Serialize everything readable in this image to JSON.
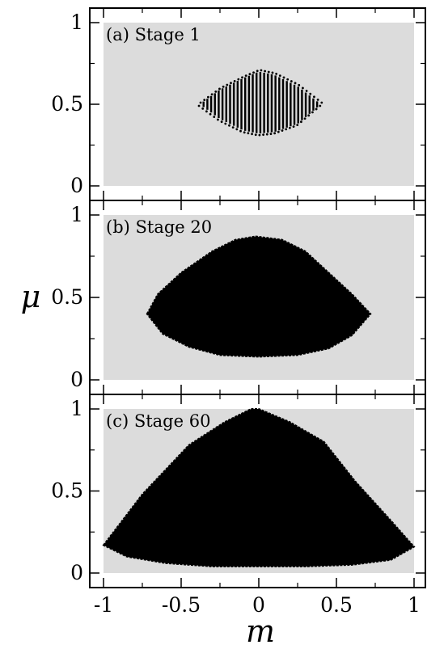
{
  "chart_data": [
    {
      "type": "scatter",
      "panel_label": "(a) Stage 1",
      "xlim": [
        -1,
        1
      ],
      "ylim": [
        0,
        1
      ],
      "xticks": [
        -1,
        -0.5,
        0,
        0.5,
        1
      ],
      "yticks": [
        0,
        0.5,
        1
      ],
      "ytick_labels": [
        "0",
        "0.5",
        "1"
      ],
      "show_xtick_labels": false,
      "region": {
        "shape": "scattered-vertical-strips",
        "x_range": [
          -0.38,
          0.4
        ],
        "y_center": 0.5,
        "y_half_height_at_center": 0.2,
        "upper_boundary": [
          [
            -0.38,
            0.5
          ],
          [
            -0.25,
            0.59
          ],
          [
            -0.1,
            0.66
          ],
          [
            0.0,
            0.7
          ],
          [
            0.1,
            0.68
          ],
          [
            0.25,
            0.61
          ],
          [
            0.4,
            0.5
          ]
        ],
        "lower_boundary": [
          [
            -0.38,
            0.5
          ],
          [
            -0.25,
            0.41
          ],
          [
            -0.1,
            0.34
          ],
          [
            0.0,
            0.32
          ],
          [
            0.1,
            0.33
          ],
          [
            0.25,
            0.38
          ],
          [
            0.4,
            0.5
          ]
        ]
      }
    },
    {
      "type": "area",
      "panel_label": "(b) Stage 20",
      "xlim": [
        -1,
        1
      ],
      "ylim": [
        0,
        1
      ],
      "xticks": [
        -1,
        -0.5,
        0,
        0.5,
        1
      ],
      "yticks": [
        0,
        0.5,
        1
      ],
      "ytick_labels": [
        "0",
        "0.5",
        "1"
      ],
      "show_xtick_labels": false,
      "region": {
        "shape": "filled-region",
        "upper_boundary": [
          [
            -0.72,
            0.4
          ],
          [
            -0.65,
            0.52
          ],
          [
            -0.5,
            0.65
          ],
          [
            -0.3,
            0.78
          ],
          [
            -0.15,
            0.85
          ],
          [
            -0.02,
            0.87
          ],
          [
            0.15,
            0.85
          ],
          [
            0.3,
            0.78
          ],
          [
            0.45,
            0.65
          ],
          [
            0.6,
            0.52
          ],
          [
            0.72,
            0.4
          ]
        ],
        "lower_boundary": [
          [
            -0.72,
            0.4
          ],
          [
            -0.62,
            0.28
          ],
          [
            -0.45,
            0.2
          ],
          [
            -0.25,
            0.15
          ],
          [
            0.0,
            0.14
          ],
          [
            0.25,
            0.15
          ],
          [
            0.45,
            0.19
          ],
          [
            0.6,
            0.27
          ],
          [
            0.72,
            0.4
          ]
        ]
      }
    },
    {
      "type": "area",
      "panel_label": "(c) Stage 60",
      "xlim": [
        -1,
        1
      ],
      "ylim": [
        0,
        1
      ],
      "xticks": [
        -1,
        -0.5,
        0,
        0.5,
        1
      ],
      "yticks": [
        0,
        0.5,
        1
      ],
      "xtick_labels": [
        "-1",
        "-0.5",
        "0",
        "0.5",
        "1"
      ],
      "ytick_labels": [
        "0",
        "0.5",
        "1"
      ],
      "show_xtick_labels": true,
      "region": {
        "shape": "filled-region",
        "upper_boundary": [
          [
            -1.0,
            0.17
          ],
          [
            -0.75,
            0.48
          ],
          [
            -0.45,
            0.78
          ],
          [
            -0.22,
            0.92
          ],
          [
            -0.05,
            1.0
          ],
          [
            0.0,
            1.0
          ],
          [
            0.2,
            0.92
          ],
          [
            0.42,
            0.8
          ],
          [
            0.62,
            0.56
          ],
          [
            0.85,
            0.32
          ],
          [
            1.0,
            0.16
          ]
        ],
        "lower_boundary": [
          [
            -1.0,
            0.17
          ],
          [
            -0.85,
            0.1
          ],
          [
            -0.6,
            0.06
          ],
          [
            -0.3,
            0.04
          ],
          [
            0.0,
            0.04
          ],
          [
            0.3,
            0.04
          ],
          [
            0.6,
            0.05
          ],
          [
            0.85,
            0.08
          ],
          [
            1.0,
            0.16
          ]
        ]
      }
    }
  ],
  "shared": {
    "xlabel": "m",
    "ylabel": "μ",
    "plot_background": "#dcdcdc",
    "region_color": "#000000",
    "page_background": "#ffffff"
  }
}
